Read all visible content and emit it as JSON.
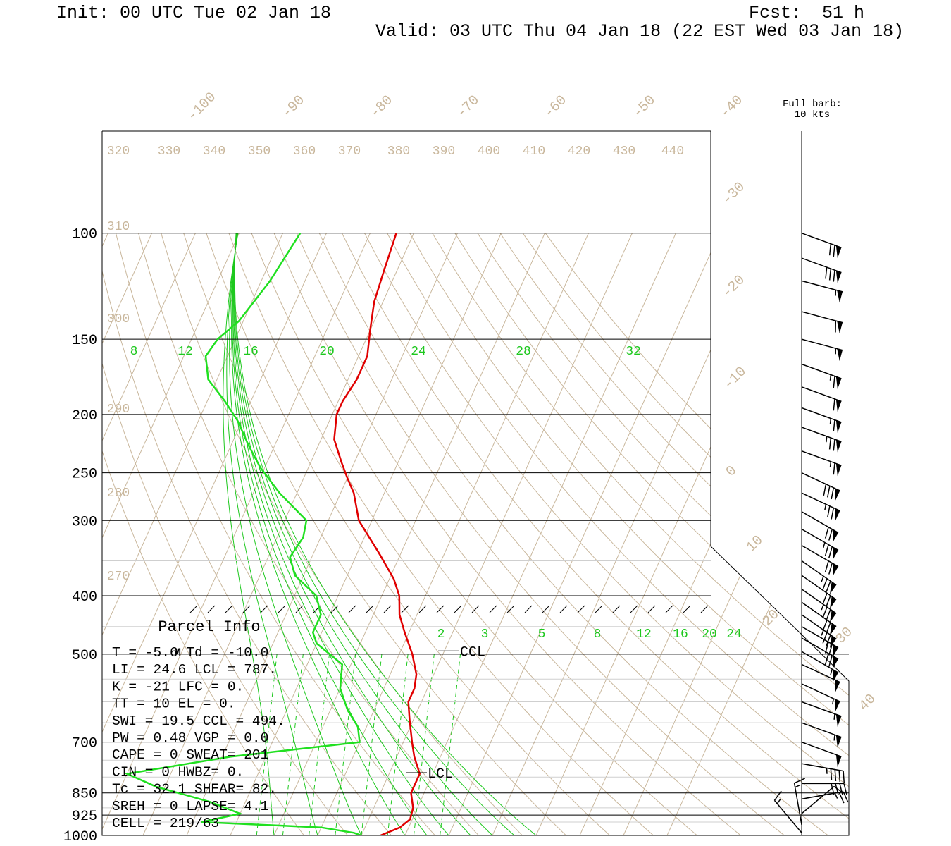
{
  "header": {
    "init": "Init: 00 UTC Tue 02 Jan 18",
    "fcst_label": "Fcst:",
    "fcst_value": "51 h",
    "valid": "Valid: 03 UTC Thu 04 Jan 18 (22 EST Wed 03 Jan 18)"
  },
  "colors": {
    "temperature": "#e00000",
    "dewpoint": "#20e020",
    "isotherm": "#c9b79c",
    "mixing_ratio": "#1ec81e",
    "frame": "#000000"
  },
  "barb_legend": {
    "line1": "Full barb:",
    "line2": "10 kts"
  },
  "chart_data": {
    "type": "line",
    "ylim": [
      1000,
      100
    ],
    "pressure_labels": [
      "100",
      "150",
      "200",
      "250",
      "300",
      "400",
      "500",
      "700",
      "850",
      "925",
      "1000"
    ],
    "skew_temp_labels": [
      "-100",
      "-90",
      "-80",
      "-70",
      "-60",
      "-50",
      "-40",
      "-30",
      "-20",
      "-10",
      "0",
      "10",
      "20",
      "30",
      "40"
    ],
    "theta_labels": [
      "320",
      "330",
      "340",
      "350",
      "360",
      "370",
      "380",
      "390",
      "400",
      "410",
      "420",
      "430",
      "440",
      "310",
      "300",
      "290",
      "280",
      "270"
    ],
    "mixing_ratio_labels_upper": [
      "8",
      "12",
      "16",
      "20",
      "24",
      "28",
      "32"
    ],
    "mixing_ratio_labels_lower": [
      "2",
      "3",
      "5",
      "8",
      "12",
      "16",
      "20",
      "24"
    ],
    "series": [
      {
        "name": "Temperature",
        "values": [
          {
            "p": 100,
            "t": -64
          },
          {
            "p": 115,
            "t": -63
          },
          {
            "p": 130,
            "t": -62
          },
          {
            "p": 145,
            "t": -60
          },
          {
            "p": 160,
            "t": -58
          },
          {
            "p": 175,
            "t": -58
          },
          {
            "p": 190,
            "t": -59
          },
          {
            "p": 200,
            "t": -59
          },
          {
            "p": 220,
            "t": -57
          },
          {
            "p": 240,
            "t": -53
          },
          {
            "p": 255,
            "t": -50
          },
          {
            "p": 270,
            "t": -47
          },
          {
            "p": 300,
            "t": -43
          },
          {
            "p": 340,
            "t": -35
          },
          {
            "p": 375,
            "t": -29
          },
          {
            "p": 400,
            "t": -26
          },
          {
            "p": 430,
            "t": -24
          },
          {
            "p": 460,
            "t": -21
          },
          {
            "p": 500,
            "t": -17
          },
          {
            "p": 540,
            "t": -14
          },
          {
            "p": 570,
            "t": -13
          },
          {
            "p": 600,
            "t": -13
          },
          {
            "p": 640,
            "t": -11
          },
          {
            "p": 700,
            "t": -8
          },
          {
            "p": 740,
            "t": -6
          },
          {
            "p": 790,
            "t": -3
          },
          {
            "p": 810,
            "t": -3
          },
          {
            "p": 850,
            "t": -3
          },
          {
            "p": 900,
            "t": -1
          },
          {
            "p": 940,
            "t": -0.5
          },
          {
            "p": 970,
            "t": -2
          },
          {
            "p": 1000,
            "t": -5.6
          }
        ]
      },
      {
        "name": "Dewpoint",
        "values": [
          {
            "p": 100,
            "t": -86
          },
          {
            "p": 120,
            "t": -88
          },
          {
            "p": 140,
            "t": -91
          },
          {
            "p": 150,
            "t": -94
          },
          {
            "p": 160,
            "t": -95
          },
          {
            "p": 175,
            "t": -92
          },
          {
            "p": 190,
            "t": -86
          },
          {
            "p": 205,
            "t": -81
          },
          {
            "p": 225,
            "t": -76
          },
          {
            "p": 245,
            "t": -71
          },
          {
            "p": 270,
            "t": -64
          },
          {
            "p": 300,
            "t": -55
          },
          {
            "p": 320,
            "t": -54
          },
          {
            "p": 345,
            "t": -55
          },
          {
            "p": 370,
            "t": -52
          },
          {
            "p": 400,
            "t": -45
          },
          {
            "p": 430,
            "t": -42
          },
          {
            "p": 460,
            "t": -42
          },
          {
            "p": 480,
            "t": -40
          },
          {
            "p": 520,
            "t": -32
          },
          {
            "p": 570,
            "t": -30
          },
          {
            "p": 620,
            "t": -26
          },
          {
            "p": 660,
            "t": -22
          },
          {
            "p": 700,
            "t": -20
          },
          {
            "p": 740,
            "t": -48
          },
          {
            "p": 790,
            "t": -70
          },
          {
            "p": 830,
            "t": -62
          },
          {
            "p": 880,
            "t": -48
          },
          {
            "p": 920,
            "t": -40
          },
          {
            "p": 950,
            "t": -48
          },
          {
            "p": 970,
            "t": -20
          },
          {
            "p": 990,
            "t": -12
          },
          {
            "p": 1000,
            "t": -10
          }
        ]
      }
    ],
    "markers": [
      {
        "label": "CCL",
        "p": 494
      },
      {
        "label": "LCL",
        "p": 787
      },
      {
        "label": "M",
        "p": 500
      }
    ]
  },
  "parcel": {
    "title": "Parcel Info",
    "rows": [
      "T  =    -5.6 Td = -10.0",
      "LI =    24.6 LCL =  787.",
      "K  =     -21 LFC =    0.",
      "TT =      10 EL  =    0.",
      "SWI =   19.5 CCL =  494.",
      "PW =    0.48 VGP =   0.0",
      "CAPE =     0 SWEAT=  201",
      "CIN =      0 HWBZ=    0.",
      "Tc =    32.1 SHEAR=  82.",
      "SREH =     0 LAPSE=  4.1",
      "CELL = 219/63"
    ]
  },
  "wind_barbs": [
    {
      "p": 100,
      "dir": 290,
      "spd": 70
    },
    {
      "p": 110,
      "dir": 290,
      "spd": 80
    },
    {
      "p": 120,
      "dir": 285,
      "spd": 55
    },
    {
      "p": 135,
      "dir": 285,
      "spd": 60
    },
    {
      "p": 150,
      "dir": 285,
      "spd": 55
    },
    {
      "p": 165,
      "dir": 290,
      "spd": 65
    },
    {
      "p": 180,
      "dir": 290,
      "spd": 60
    },
    {
      "p": 195,
      "dir": 290,
      "spd": 65
    },
    {
      "p": 210,
      "dir": 290,
      "spd": 75
    },
    {
      "p": 230,
      "dir": 290,
      "spd": 65
    },
    {
      "p": 250,
      "dir": 295,
      "spd": 80
    },
    {
      "p": 270,
      "dir": 295,
      "spd": 75
    },
    {
      "p": 290,
      "dir": 300,
      "spd": 70
    },
    {
      "p": 310,
      "dir": 300,
      "spd": 75
    },
    {
      "p": 330,
      "dir": 300,
      "spd": 70
    },
    {
      "p": 350,
      "dir": 305,
      "spd": 75
    },
    {
      "p": 370,
      "dir": 305,
      "spd": 70
    },
    {
      "p": 390,
      "dir": 305,
      "spd": 75
    },
    {
      "p": 410,
      "dir": 305,
      "spd": 70
    },
    {
      "p": 430,
      "dir": 305,
      "spd": 75
    },
    {
      "p": 450,
      "dir": 300,
      "spd": 70
    },
    {
      "p": 470,
      "dir": 300,
      "spd": 70
    },
    {
      "p": 495,
      "dir": 300,
      "spd": 55
    },
    {
      "p": 520,
      "dir": 295,
      "spd": 50
    },
    {
      "p": 560,
      "dir": 295,
      "spd": 55
    },
    {
      "p": 600,
      "dir": 290,
      "spd": 55
    },
    {
      "p": 650,
      "dir": 290,
      "spd": 55
    },
    {
      "p": 700,
      "dir": 290,
      "spd": 50
    },
    {
      "p": 760,
      "dir": 280,
      "spd": 45
    },
    {
      "p": 820,
      "dir": 270,
      "spd": 40
    },
    {
      "p": 870,
      "dir": 260,
      "spd": 25
    },
    {
      "p": 920,
      "dir": 230,
      "spd": 10
    },
    {
      "p": 960,
      "dir": 170,
      "spd": 15
    },
    {
      "p": 990,
      "dir": 140,
      "spd": 15
    }
  ]
}
